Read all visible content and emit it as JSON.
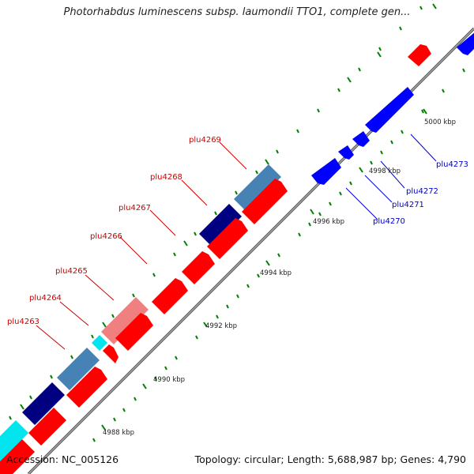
{
  "title": "Photorhabdus luminescens subsp. laumondii TTO1, complete gen...",
  "accession": "Accession: NC_005126",
  "summary": "Topology: circular; Length: 5,688,987 bp; Genes: 4,790",
  "colors": {
    "forward_gene": "#ff0000",
    "forward_gene_light": "#f08080",
    "reverse_gene": "#0000ff",
    "feature_navy": "#000080",
    "feature_steel": "#4682b4",
    "feature_cyan": "#00e5ee",
    "feature_pink": "#f08080",
    "backbone": "#808080",
    "tick": "#008000",
    "label_red": "#cc0000",
    "label_blue": "#0000cc"
  },
  "scale_labels": [
    "4988 kbp",
    "4990 kbp",
    "4992 kbp",
    "4994 kbp",
    "4996 kbp",
    "4998 kbp",
    "5000 kbp"
  ],
  "genes_forward": [
    "plu4263",
    "plu4264",
    "plu4265",
    "plu4266",
    "plu4267",
    "plu4268",
    "plu4269"
  ],
  "genes_reverse": [
    "plu4270",
    "plu4271",
    "plu4272",
    "plu4273"
  ]
}
